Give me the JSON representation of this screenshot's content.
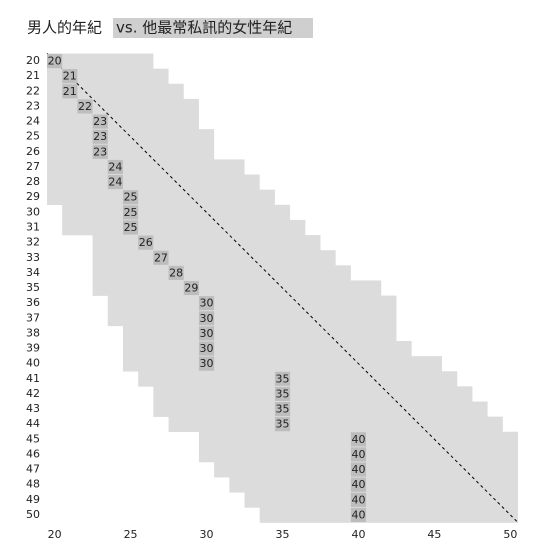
{
  "chart_data": {
    "type": "range-heat",
    "title_plain": "男人的年紀",
    "title_highlight": "vs. 他最常私訊的女性年紀",
    "categories": [
      20,
      21,
      22,
      23,
      24,
      25,
      26,
      27,
      28,
      29,
      30,
      31,
      32,
      33,
      34,
      35,
      36,
      37,
      38,
      39,
      40,
      41,
      42,
      43,
      44,
      45,
      46,
      47,
      48,
      49,
      50
    ],
    "range_start": [
      20,
      20,
      20,
      20,
      20,
      20,
      20,
      20,
      20,
      20,
      21,
      21,
      23,
      23,
      23,
      23,
      24,
      24,
      25,
      25,
      25,
      26,
      27,
      27,
      28,
      30,
      30,
      31,
      32,
      33,
      34
    ],
    "range_end": [
      26,
      27,
      28,
      29,
      29,
      30,
      30,
      32,
      33,
      34,
      35,
      36,
      37,
      38,
      39,
      41,
      42,
      42,
      42,
      43,
      45,
      46,
      47,
      48,
      49,
      50,
      50,
      50,
      50,
      50,
      50
    ],
    "values": [
      20,
      21,
      21,
      22,
      23,
      23,
      23,
      24,
      24,
      25,
      25,
      25,
      26,
      27,
      28,
      29,
      30,
      30,
      30,
      30,
      30,
      35,
      35,
      35,
      35,
      40,
      40,
      40,
      40,
      40,
      40
    ],
    "xlim": [
      19.5,
      50.5
    ],
    "xticks": [
      20,
      25,
      30,
      35,
      40,
      45,
      50
    ],
    "band_color": "#dcdcdc",
    "label_color": "#bdbdbd",
    "diagonal": true
  }
}
